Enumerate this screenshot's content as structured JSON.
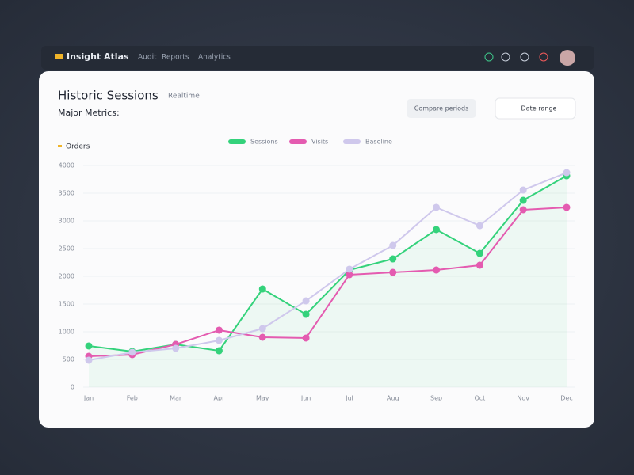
{
  "header": {
    "brand": "Insight Atlas",
    "nav": [
      "Audit",
      "Reports",
      "Analytics"
    ]
  },
  "panel": {
    "title": "Historic Sessions",
    "subtitle": "Realtime",
    "caption": "Major Metrics:",
    "buttons": [
      "Compare periods",
      "Date range"
    ],
    "metric_label": "Orders"
  },
  "chart_data": {
    "type": "line",
    "categories": [
      "Jan",
      "Feb",
      "Mar",
      "Apr",
      "May",
      "Jun",
      "Jul",
      "Aug",
      "Sep",
      "Oct",
      "Nov",
      "Dec"
    ],
    "series": [
      {
        "name": "Sessions",
        "color": "#34d27b",
        "values": [
          743,
          643,
          771,
          657,
          1771,
          1314,
          2114,
          2314,
          2843,
          2414,
          3371,
          3814
        ]
      },
      {
        "name": "Visits",
        "color": "#e45bb0",
        "values": [
          557,
          586,
          771,
          1029,
          900,
          886,
          2029,
          2071,
          2114,
          2200,
          3200,
          3243
        ]
      },
      {
        "name": "Baseline",
        "color": "#cfc8ec",
        "values": [
          486,
          629,
          700,
          843,
          1057,
          1557,
          2129,
          2557,
          3243,
          2914,
          3557,
          3871
        ]
      }
    ],
    "ylim": [
      0,
      4000
    ],
    "yticks": [
      0,
      500,
      1000,
      1500,
      2000,
      2500,
      3000,
      3500,
      4000
    ],
    "grid": true
  }
}
